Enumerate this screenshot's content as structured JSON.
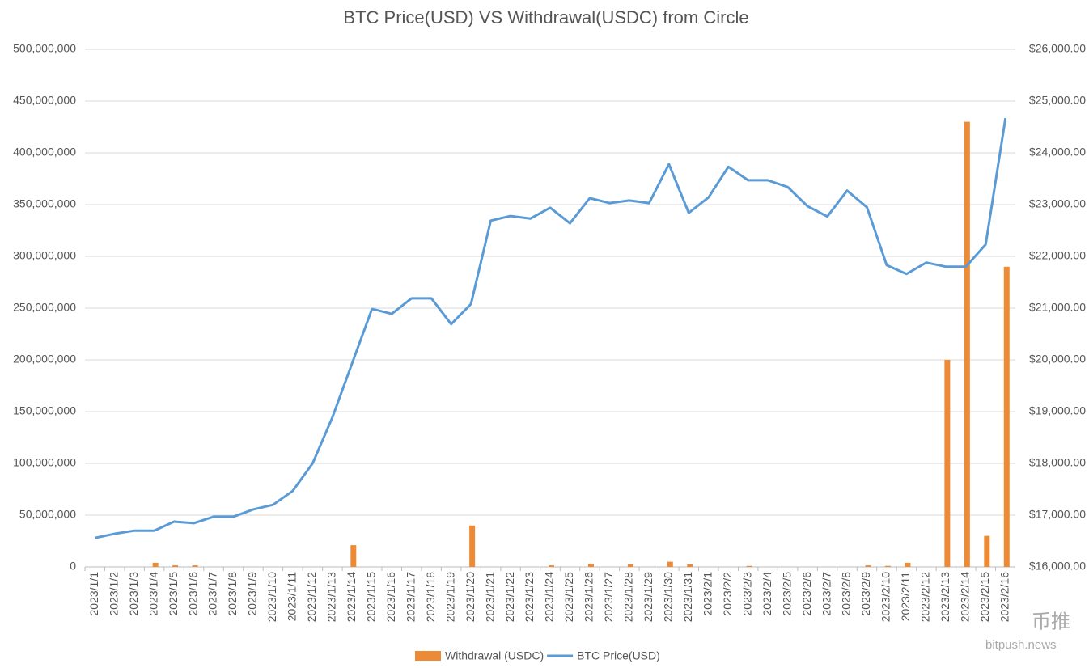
{
  "chart_data": {
    "type": "combo",
    "title": "BTC Price(USD) VS Withdrawal(USDC) from Circle",
    "categories": [
      "2023/1/1",
      "2023/1/2",
      "2023/1/3",
      "2023/1/4",
      "2023/1/5",
      "2023/1/6",
      "2023/1/7",
      "2023/1/8",
      "2023/1/9",
      "2023/1/10",
      "2023/1/11",
      "2023/1/12",
      "2023/1/13",
      "2023/1/14",
      "2023/1/15",
      "2023/1/16",
      "2023/1/17",
      "2023/1/18",
      "2023/1/19",
      "2023/1/20",
      "2023/1/21",
      "2023/1/22",
      "2023/1/23",
      "2023/1/24",
      "2023/1/25",
      "2023/1/26",
      "2023/1/27",
      "2023/1/28",
      "2023/1/29",
      "2023/1/30",
      "2023/1/31",
      "2023/2/1",
      "2023/2/2",
      "2023/2/3",
      "2023/2/4",
      "2023/2/5",
      "2023/2/6",
      "2023/2/7",
      "2023/2/8",
      "2023/2/9",
      "2023/2/10",
      "2023/2/11",
      "2023/2/12",
      "2023/2/13",
      "2023/2/14",
      "2023/2/15",
      "2023/2/16"
    ],
    "series": [
      {
        "name": "Withdrawal (USDC)",
        "type": "bar",
        "color": "#ed8a35",
        "values": [
          0,
          0,
          0,
          4000000,
          1500000,
          1500000,
          0,
          0,
          0,
          0,
          0,
          0,
          0,
          21000000,
          0,
          0,
          0,
          0,
          0,
          40000000,
          0,
          0,
          0,
          1500000,
          0,
          3000000,
          0,
          2500000,
          0,
          5000000,
          2500000,
          0,
          0,
          1000000,
          0,
          0,
          0,
          0,
          0,
          1500000,
          1000000,
          4000000,
          0,
          200000000,
          430000000,
          30000000,
          290000000
        ]
      },
      {
        "name": "BTC Price(USD)",
        "type": "line",
        "axis": "y2",
        "color": "#5b9bd5",
        "values": [
          16560,
          16640,
          16700,
          16700,
          16875,
          16845,
          16970,
          16970,
          17110,
          17200,
          17470,
          18000,
          18890,
          19940,
          20985,
          20890,
          21190,
          21190,
          20690,
          21080,
          22690,
          22780,
          22730,
          22940,
          22640,
          23125,
          23030,
          23080,
          23030,
          23780,
          22840,
          23140,
          23730,
          23470,
          23470,
          23340,
          22970,
          22770,
          23270,
          22950,
          21830,
          21660,
          21880,
          21800,
          21800,
          22230,
          24670
        ]
      }
    ],
    "ylim": [
      0,
      500000000
    ],
    "yticks": [
      0,
      {
        "value": 50000000,
        "label": "50,000,000"
      },
      {
        "value": 100000000,
        "label": "100,000,000"
      },
      {
        "value": 150000000,
        "label": "150,000,000"
      },
      {
        "value": 200000000,
        "label": "200,000,000"
      },
      {
        "value": 250000000,
        "label": "250,000,000"
      },
      {
        "value": 300000000,
        "label": "300,000,000"
      },
      {
        "value": 350000000,
        "label": "350,000,000"
      },
      {
        "value": 400000000,
        "label": "400,000,000"
      },
      {
        "value": 450000000,
        "label": "450,000,000"
      },
      {
        "value": 500000000,
        "label": "500,000,000"
      }
    ],
    "y2lim": [
      16000,
      26000
    ],
    "y2ticks": [
      {
        "value": 16000,
        "label": "$16,000.00"
      },
      {
        "value": 17000,
        "label": "$17,000.00"
      },
      {
        "value": 18000,
        "label": "$18,000.00"
      },
      {
        "value": 19000,
        "label": "$19,000.00"
      },
      {
        "value": 20000,
        "label": "$20,000.00"
      },
      {
        "value": 21000,
        "label": "$21,000.00"
      },
      {
        "value": 22000,
        "label": "$22,000.00"
      },
      {
        "value": 23000,
        "label": "$23,000.00"
      },
      {
        "value": 24000,
        "label": "$24,000.00"
      },
      {
        "value": 25000,
        "label": "$25,000.00"
      },
      {
        "value": 26000,
        "label": "$26,000.00"
      }
    ],
    "grid": true,
    "legend": "bottom",
    "watermark": {
      "logo": "币推",
      "site": "bitpush.news"
    }
  }
}
